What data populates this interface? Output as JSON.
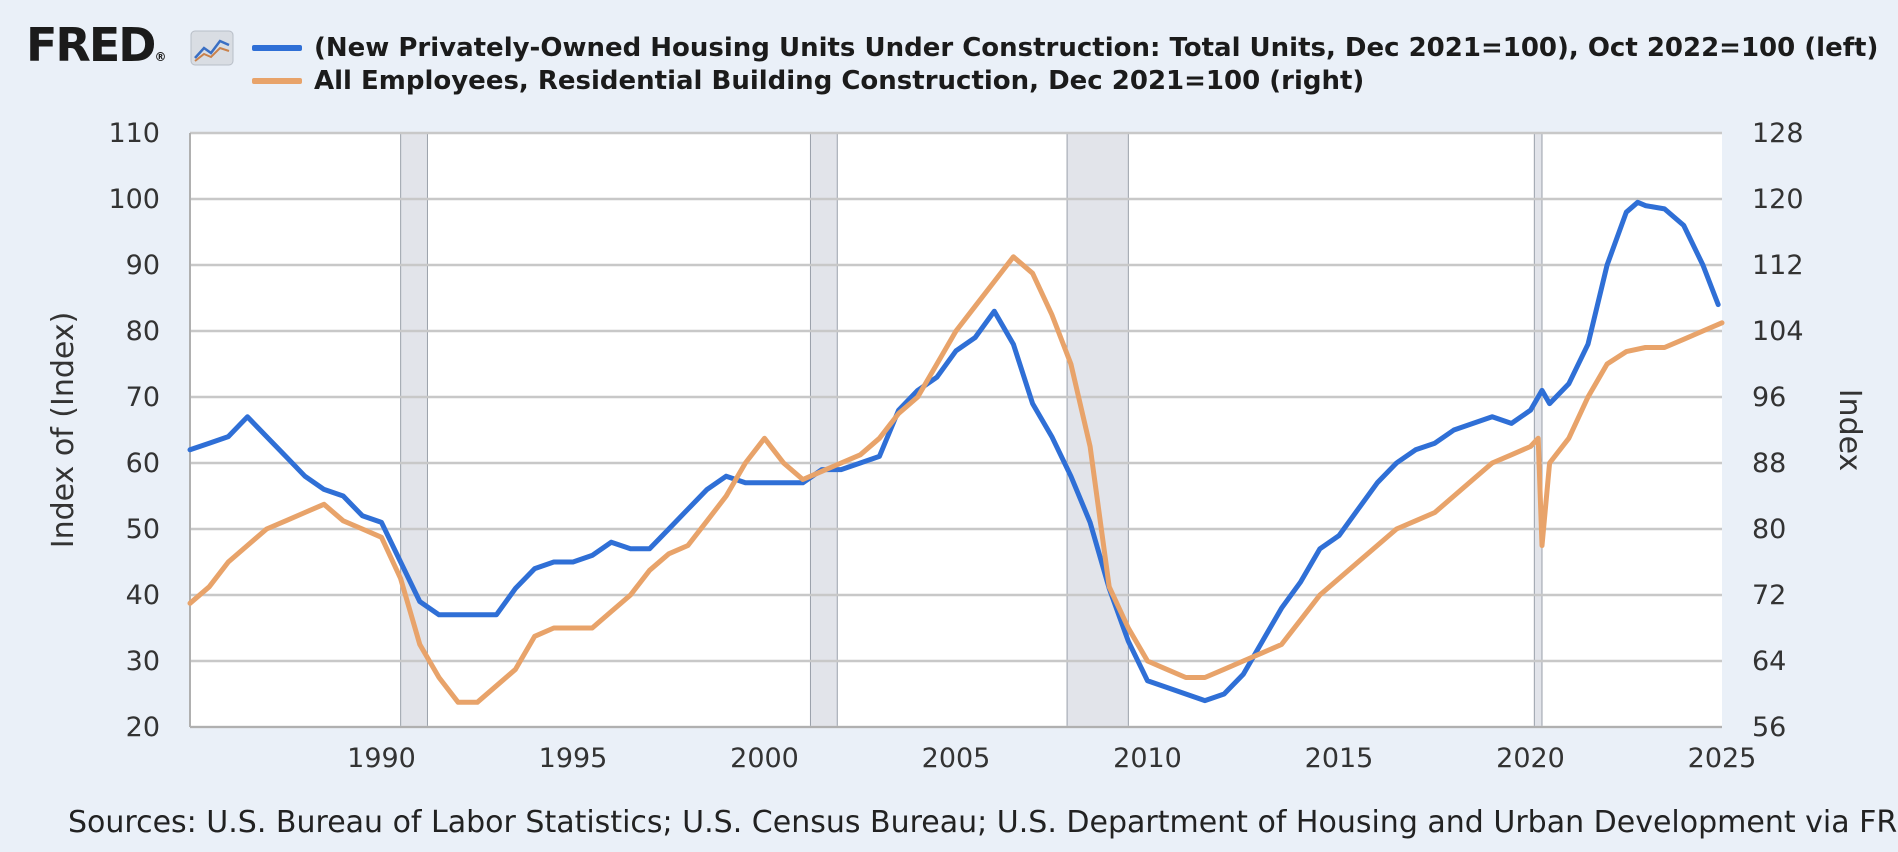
{
  "logo": {
    "text": "FRED",
    "registered": "®",
    "icon": "line-chart-icon"
  },
  "colors": {
    "series1": "#2f6fd6",
    "series2": "#e8a36a",
    "recession": "#e2e4ea",
    "grid": "#c8c8c8",
    "background": "#eaf0f8"
  },
  "source": "Sources: U.S. Bureau of Labor Statistics; U.S. Census Bureau; U.S. Department of Housing and Urban Development via FRED®",
  "chart_data": {
    "type": "line",
    "grid": true,
    "legend_placement": "top",
    "xlabel": "",
    "ylabel": "Index of (Index)",
    "ylabel_right": "Index",
    "xlim": [
      1985,
      2025
    ],
    "ylim": [
      20,
      110
    ],
    "ylim_right": [
      56,
      128
    ],
    "x_ticks": [
      "1990",
      "1995",
      "2000",
      "2005",
      "2010",
      "2015",
      "2020",
      "2025"
    ],
    "y_ticks": [
      "20",
      "30",
      "40",
      "50",
      "60",
      "70",
      "80",
      "90",
      "100",
      "110"
    ],
    "y_ticks_right": [
      "56",
      "64",
      "72",
      "80",
      "88",
      "96",
      "104",
      "112",
      "120",
      "128"
    ],
    "recessions": [
      [
        1990.5,
        1991.2
      ],
      [
        2001.2,
        2001.9
      ],
      [
        2007.9,
        2009.5
      ],
      [
        2020.1,
        2020.3
      ]
    ],
    "series": [
      {
        "name": "(New Privately-Owned Housing Units Under Construction: Total Units, Dec 2021=100), Oct 2022=100 (left)",
        "axis": "left",
        "color": "#2f6fd6",
        "x": [
          1985.0,
          1985.5,
          1986.0,
          1986.5,
          1987.0,
          1987.5,
          1988.0,
          1988.5,
          1989.0,
          1989.5,
          1990.0,
          1990.5,
          1991.0,
          1991.5,
          1992.0,
          1992.5,
          1993.0,
          1993.5,
          1994.0,
          1994.5,
          1995.0,
          1995.5,
          1996.0,
          1996.5,
          1997.0,
          1997.5,
          1998.0,
          1998.5,
          1999.0,
          1999.5,
          2000.0,
          2000.5,
          2001.0,
          2001.5,
          2002.0,
          2002.5,
          2003.0,
          2003.5,
          2004.0,
          2004.5,
          2005.0,
          2005.5,
          2006.0,
          2006.5,
          2007.0,
          2007.5,
          2008.0,
          2008.5,
          2009.0,
          2009.5,
          2010.0,
          2010.5,
          2011.0,
          2011.5,
          2012.0,
          2012.5,
          2013.0,
          2013.5,
          2014.0,
          2014.5,
          2015.0,
          2015.5,
          2016.0,
          2016.5,
          2017.0,
          2017.5,
          2018.0,
          2018.5,
          2019.0,
          2019.5,
          2020.0,
          2020.3,
          2020.5,
          2021.0,
          2021.5,
          2022.0,
          2022.5,
          2022.8,
          2023.0,
          2023.5,
          2024.0,
          2024.5,
          2024.9
        ],
        "values": [
          62,
          63,
          64,
          67,
          64,
          61,
          58,
          56,
          55,
          52,
          51,
          45,
          39,
          37,
          37,
          37,
          37,
          41,
          44,
          45,
          45,
          46,
          48,
          47,
          47,
          50,
          53,
          56,
          58,
          57,
          57,
          57,
          57,
          59,
          59,
          60,
          61,
          68,
          71,
          73,
          77,
          79,
          83,
          78,
          69,
          64,
          58,
          51,
          41,
          33,
          27,
          26,
          25,
          24,
          25,
          28,
          33,
          38,
          42,
          47,
          49,
          53,
          57,
          60,
          62,
          63,
          65,
          66,
          67,
          66,
          68,
          71,
          69,
          72,
          78,
          90,
          98,
          99.5,
          99,
          98.5,
          96,
          90,
          84
        ]
      },
      {
        "name": "All Employees, Residential Building Construction, Dec 2021=100 (right)",
        "axis": "right",
        "color": "#e8a36a",
        "x": [
          1985.0,
          1985.5,
          1986.0,
          1986.5,
          1987.0,
          1987.5,
          1988.0,
          1988.5,
          1989.0,
          1989.5,
          1990.0,
          1990.5,
          1991.0,
          1991.5,
          1992.0,
          1992.5,
          1993.0,
          1993.5,
          1994.0,
          1994.5,
          1995.0,
          1995.5,
          1996.0,
          1996.5,
          1997.0,
          1997.5,
          1998.0,
          1998.5,
          1999.0,
          1999.5,
          2000.0,
          2000.5,
          2001.0,
          2001.5,
          2002.0,
          2002.5,
          2003.0,
          2003.5,
          2004.0,
          2004.5,
          2005.0,
          2005.5,
          2006.0,
          2006.5,
          2007.0,
          2007.5,
          2008.0,
          2008.5,
          2009.0,
          2009.5,
          2010.0,
          2010.5,
          2011.0,
          2011.5,
          2012.0,
          2012.5,
          2013.0,
          2013.5,
          2014.0,
          2014.5,
          2015.0,
          2015.5,
          2016.0,
          2016.5,
          2017.0,
          2017.5,
          2018.0,
          2018.5,
          2019.0,
          2019.5,
          2020.0,
          2020.2,
          2020.3,
          2020.5,
          2021.0,
          2021.5,
          2022.0,
          2022.5,
          2023.0,
          2023.5,
          2024.0,
          2024.5,
          2025.0
        ],
        "values": [
          71,
          73,
          76,
          78,
          80,
          81,
          82,
          83,
          81,
          80,
          79,
          74,
          66,
          62,
          59,
          59,
          61,
          63,
          67,
          68,
          68,
          68,
          70,
          72,
          75,
          77,
          78,
          81,
          84,
          88,
          91,
          88,
          86,
          87,
          88,
          89,
          91,
          94,
          96,
          100,
          104,
          107,
          110,
          113,
          111,
          106,
          100,
          90,
          73,
          68,
          64,
          63,
          62,
          62,
          63,
          64,
          65,
          66,
          69,
          72,
          74,
          76,
          78,
          80,
          81,
          82,
          84,
          86,
          88,
          89,
          90,
          91,
          78,
          88,
          91,
          96,
          100,
          101.5,
          102,
          102,
          103,
          104,
          105
        ]
      }
    ]
  }
}
